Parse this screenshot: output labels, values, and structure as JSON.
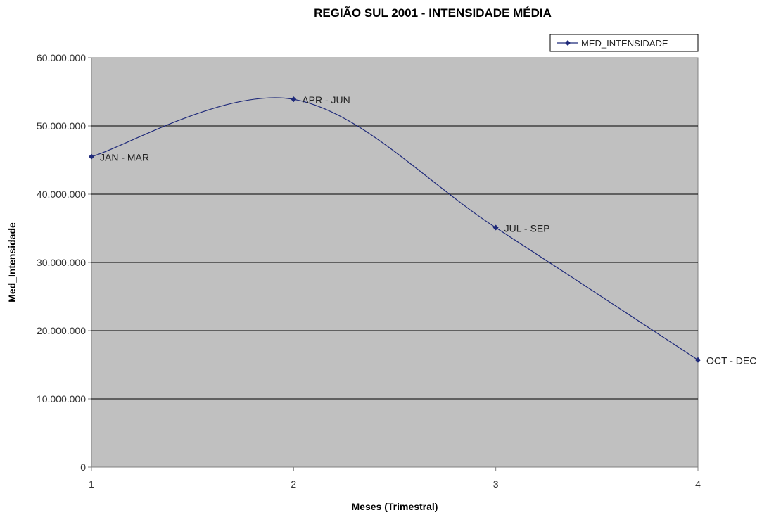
{
  "chart_data": {
    "type": "line",
    "title": "REGIÃO SUL 2001 - INTENSIDADE MÉDIA",
    "xlabel": "Meses (Trimestral)",
    "ylabel": "Med_Intensidade",
    "x": [
      1,
      2,
      3,
      4
    ],
    "xticks": [
      "1",
      "2",
      "3",
      "4"
    ],
    "xlim": [
      1,
      4
    ],
    "ylim": [
      0,
      60000000
    ],
    "yticks": [
      "0",
      "10.000.000",
      "20.000.000",
      "30.000.000",
      "40.000.000",
      "50.000.000",
      "60.000.000"
    ],
    "ytick_values": [
      0,
      10000000,
      20000000,
      30000000,
      40000000,
      50000000,
      60000000
    ],
    "series": [
      {
        "name": "MED_INTENSIDADE",
        "values": [
          45500000,
          53900000,
          35100000,
          15700000
        ],
        "point_labels": [
          "JAN - MAR",
          "APR - JUN",
          "JUL - SEP",
          "OCT - DEC"
        ],
        "color": "#1f2a7a",
        "smoothed": true
      }
    ],
    "grid": "horizontal",
    "plot_background": "#c0c0c0",
    "legend_position": "top-right"
  }
}
